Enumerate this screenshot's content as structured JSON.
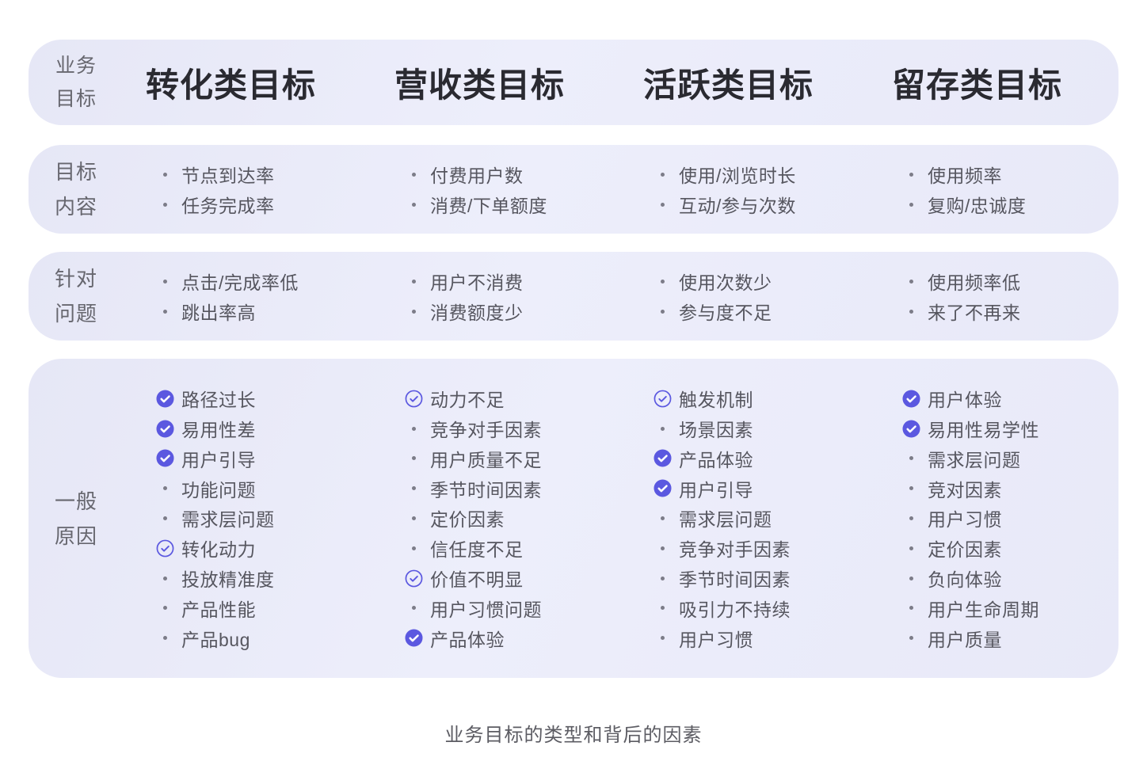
{
  "colors": {
    "accent": "#5B58E0",
    "band_bg": "#E9EAF8",
    "header_text": "#2A2A31",
    "body_text": "#56565F",
    "label_text": "#67676F",
    "bullet_dot": "#7C7C88",
    "check_mark_on_filled": "#FFFFFF"
  },
  "caption": "业务目标的类型和背后的因素",
  "header": {
    "label_lines": [
      "业务",
      "目标"
    ],
    "columns": [
      "转化类目标",
      "营收类目标",
      "活跃类目标",
      "留存类目标"
    ]
  },
  "rows": [
    {
      "label_lines": [
        "目标",
        "内容"
      ],
      "columns": [
        [
          {
            "marker": "dot",
            "text": "节点到达率"
          },
          {
            "marker": "dot",
            "text": "任务完成率"
          }
        ],
        [
          {
            "marker": "dot",
            "text": "付费用户数"
          },
          {
            "marker": "dot",
            "text": "消费/下单额度"
          }
        ],
        [
          {
            "marker": "dot",
            "text": "使用/浏览时长"
          },
          {
            "marker": "dot",
            "text": "互动/参与次数"
          }
        ],
        [
          {
            "marker": "dot",
            "text": "使用频率"
          },
          {
            "marker": "dot",
            "text": "复购/忠诚度"
          }
        ]
      ]
    },
    {
      "label_lines": [
        "针对",
        "问题"
      ],
      "columns": [
        [
          {
            "marker": "dot",
            "text": "点击/完成率低"
          },
          {
            "marker": "dot",
            "text": "跳出率高"
          }
        ],
        [
          {
            "marker": "dot",
            "text": "用户不消费"
          },
          {
            "marker": "dot",
            "text": "消费额度少"
          }
        ],
        [
          {
            "marker": "dot",
            "text": "使用次数少"
          },
          {
            "marker": "dot",
            "text": "参与度不足"
          }
        ],
        [
          {
            "marker": "dot",
            "text": "使用频率低"
          },
          {
            "marker": "dot",
            "text": "来了不再来"
          }
        ]
      ]
    },
    {
      "label_lines": [
        "一般",
        "原因"
      ],
      "columns": [
        [
          {
            "marker": "check-filled",
            "text": "路径过长"
          },
          {
            "marker": "check-filled",
            "text": "易用性差"
          },
          {
            "marker": "check-filled",
            "text": "用户引导"
          },
          {
            "marker": "dot",
            "text": "功能问题"
          },
          {
            "marker": "dot",
            "text": "需求层问题"
          },
          {
            "marker": "check-outline",
            "text": "转化动力"
          },
          {
            "marker": "dot",
            "text": "投放精准度"
          },
          {
            "marker": "dot",
            "text": "产品性能"
          },
          {
            "marker": "dot",
            "text": "产品bug"
          }
        ],
        [
          {
            "marker": "check-outline",
            "text": "动力不足"
          },
          {
            "marker": "dot",
            "text": "竞争对手因素"
          },
          {
            "marker": "dot",
            "text": "用户质量不足"
          },
          {
            "marker": "dot",
            "text": "季节时间因素"
          },
          {
            "marker": "dot",
            "text": "定价因素"
          },
          {
            "marker": "dot",
            "text": "信任度不足"
          },
          {
            "marker": "check-outline",
            "text": "价值不明显"
          },
          {
            "marker": "dot",
            "text": "用户习惯问题"
          },
          {
            "marker": "check-filled",
            "text": "产品体验"
          }
        ],
        [
          {
            "marker": "check-outline",
            "text": "触发机制"
          },
          {
            "marker": "dot",
            "text": "场景因素"
          },
          {
            "marker": "check-filled",
            "text": "产品体验"
          },
          {
            "marker": "check-filled",
            "text": "用户引导"
          },
          {
            "marker": "dot",
            "text": "需求层问题"
          },
          {
            "marker": "dot",
            "text": "竞争对手因素"
          },
          {
            "marker": "dot",
            "text": "季节时间因素"
          },
          {
            "marker": "dot",
            "text": "吸引力不持续"
          },
          {
            "marker": "dot",
            "text": "用户习惯"
          }
        ],
        [
          {
            "marker": "check-filled",
            "text": "用户体验"
          },
          {
            "marker": "check-filled",
            "text": "易用性易学性"
          },
          {
            "marker": "dot",
            "text": "需求层问题"
          },
          {
            "marker": "dot",
            "text": "竞对因素"
          },
          {
            "marker": "dot",
            "text": "用户习惯"
          },
          {
            "marker": "dot",
            "text": "定价因素"
          },
          {
            "marker": "dot",
            "text": "负向体验"
          },
          {
            "marker": "dot",
            "text": "用户生命周期"
          },
          {
            "marker": "dot",
            "text": "用户质量"
          }
        ]
      ]
    }
  ]
}
